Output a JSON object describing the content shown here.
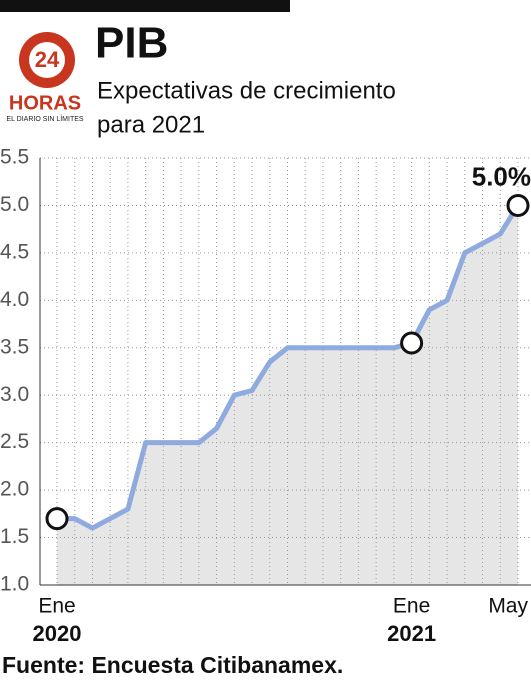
{
  "logo": {
    "number": "24",
    "name": "HORAS",
    "tagline": "EL DIARIO SIN LÍMITES"
  },
  "chart_data": {
    "type": "line",
    "title": "PIB",
    "subtitle_lines": [
      "Expectativas de crecimiento",
      "para 2021"
    ],
    "categories": [
      "Ene",
      null,
      null,
      null,
      null,
      null,
      null,
      null,
      null,
      null,
      null,
      null,
      null,
      null,
      null,
      null,
      null,
      null,
      null,
      null,
      "Ene",
      null,
      null,
      null,
      null,
      null,
      "May"
    ],
    "category_years": [
      "2020",
      null,
      null,
      null,
      null,
      null,
      null,
      null,
      null,
      null,
      null,
      null,
      null,
      null,
      null,
      null,
      null,
      null,
      null,
      null,
      "2021",
      null,
      null,
      null,
      null,
      null,
      null
    ],
    "series": [
      {
        "name": "PIB",
        "color": "#8eaadf",
        "values": [
          1.7,
          1.7,
          1.6,
          1.7,
          1.8,
          2.5,
          2.5,
          2.5,
          2.5,
          2.65,
          3.0,
          3.05,
          3.35,
          3.5,
          3.5,
          3.5,
          3.5,
          3.5,
          3.5,
          3.5,
          3.55,
          3.9,
          4.0,
          4.5,
          4.6,
          4.7,
          5.0
        ],
        "value_labels": [
          null,
          null,
          null,
          null,
          null,
          null,
          null,
          null,
          null,
          null,
          null,
          null,
          null,
          null,
          null,
          null,
          null,
          null,
          null,
          null,
          null,
          null,
          null,
          null,
          null,
          null,
          "5.0%"
        ]
      }
    ],
    "ylim": [
      1,
      5.5
    ],
    "yticks": [
      {
        "value": 1,
        "label": "1.0"
      },
      1.5,
      {
        "value": 2,
        "label": "2.0"
      },
      2.5,
      {
        "value": 3,
        "label": "3.0"
      },
      3.5,
      {
        "value": 4,
        "label": "4.0"
      },
      4.5,
      {
        "value": 5,
        "label": "5.0"
      },
      5.5
    ],
    "grid": true,
    "area_color": "#e6e6e6",
    "source": "Fuente: Encuesta Citibanamex."
  }
}
